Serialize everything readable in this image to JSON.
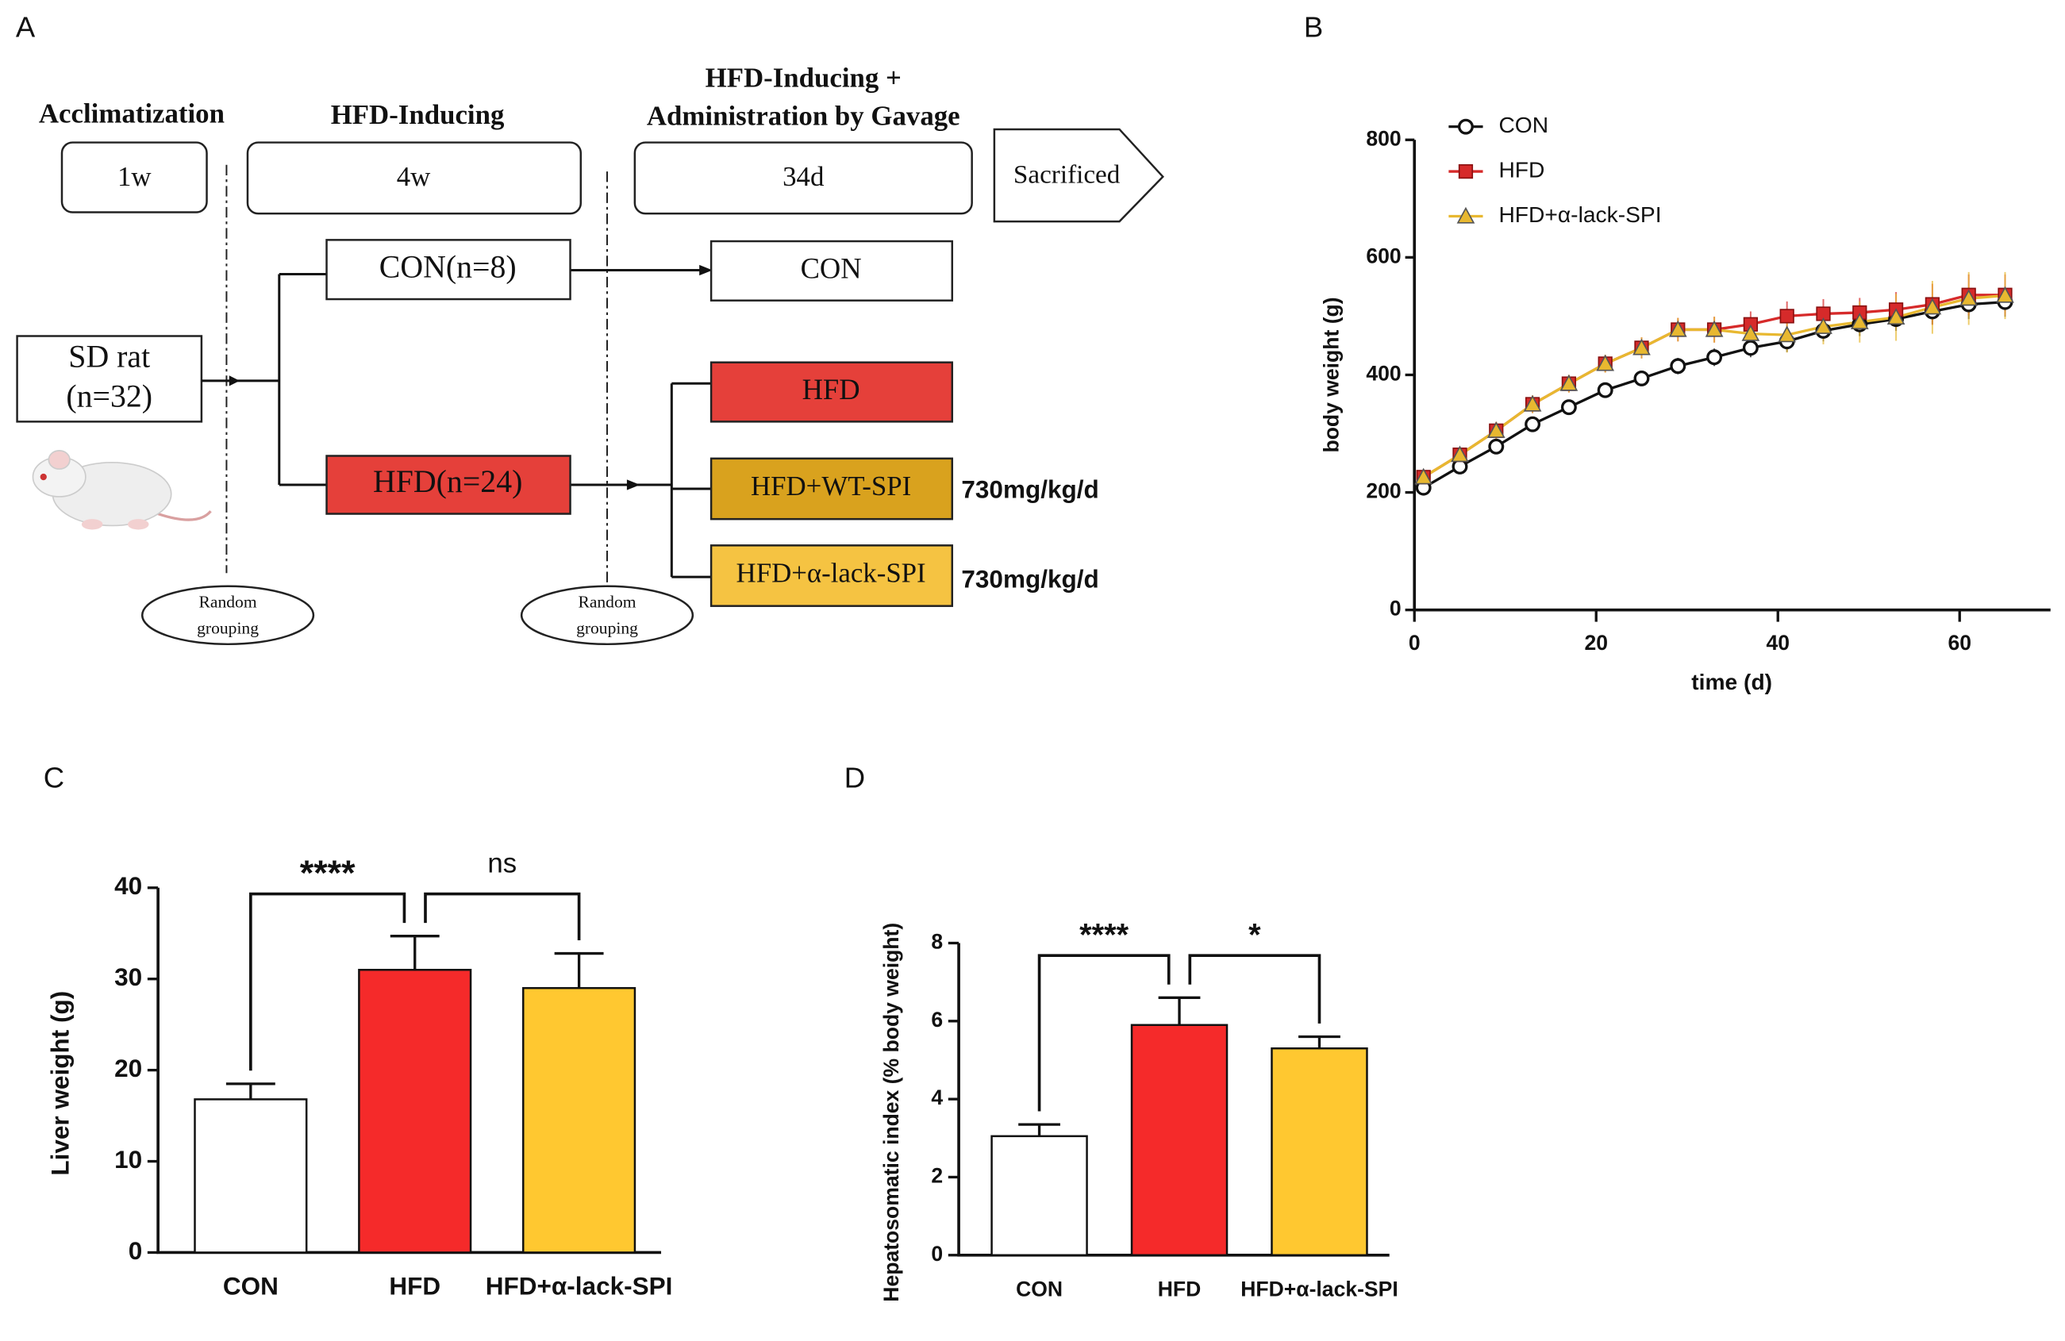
{
  "diagram": {
    "panel_label": "A",
    "phases": [
      {
        "title": [
          "Acclimatization"
        ],
        "duration": "1w"
      },
      {
        "title": [
          "HFD-Inducing"
        ],
        "duration": "4w"
      },
      {
        "title": [
          "HFD-Inducing +",
          "Administration by Gavage"
        ],
        "duration": "34d"
      }
    ],
    "end": "Sacrificed",
    "start": [
      "SD rat",
      "(n=32)"
    ],
    "groups": [
      "CON(n=8)",
      "HFD(n=24)"
    ],
    "treatments": [
      "CON",
      "HFD",
      "HFD+WT-SPI",
      "HFD+α-lack-SPI"
    ],
    "doses": [
      "730mg/kg/d",
      "730mg/kg/d"
    ],
    "random_grouping": [
      [
        "Random",
        "grouping"
      ],
      [
        "Random",
        "grouping"
      ]
    ]
  },
  "chart_data": [
    {
      "type": "line",
      "panel_label": "B",
      "xlabel": "time (d)",
      "ylabel": "body weight  (g)",
      "x": [
        1,
        5,
        9,
        13,
        17,
        21,
        25,
        29,
        33,
        37,
        41,
        45,
        49,
        53,
        57,
        61,
        65
      ],
      "xlim": [
        0,
        70
      ],
      "xticks": [
        0,
        20,
        40,
        60
      ],
      "ylim": [
        0,
        800
      ],
      "yticks": [
        0,
        200,
        400,
        600,
        800
      ],
      "series": [
        {
          "name": "CON",
          "color": "#111111",
          "marker": "circle",
          "values": [
            208,
            244,
            278,
            316,
            345,
            374,
            394,
            415,
            430,
            446,
            457,
            475,
            486,
            495,
            508,
            520,
            524
          ],
          "errors": [
            8,
            12,
            12,
            12,
            12,
            12,
            12,
            14,
            15,
            16,
            18,
            18,
            20,
            20,
            22,
            25,
            25
          ]
        },
        {
          "name": "HFD",
          "color": "#d62a2a",
          "marker": "square",
          "values": [
            226,
            264,
            305,
            350,
            385,
            419,
            446,
            477,
            477,
            486,
            500,
            504,
            506,
            511,
            520,
            536,
            536
          ],
          "errors": [
            8,
            12,
            15,
            15,
            15,
            15,
            18,
            20,
            22,
            22,
            25,
            25,
            25,
            30,
            35,
            35,
            35
          ]
        },
        {
          "name": "HFD+α-lack-SPI",
          "color": "#e8b830",
          "marker": "triangle",
          "values": [
            226,
            264,
            305,
            350,
            385,
            419,
            446,
            477,
            477,
            470,
            468,
            482,
            490,
            498,
            515,
            530,
            535
          ],
          "errors": [
            8,
            12,
            15,
            15,
            15,
            15,
            18,
            20,
            22,
            25,
            30,
            30,
            35,
            40,
            45,
            45,
            40
          ]
        }
      ]
    },
    {
      "type": "bar",
      "panel_label": "C",
      "ylabel": "Liver weight (g)",
      "categories": [
        "CON",
        "HFD",
        "HFD+α-lack-SPI"
      ],
      "values": [
        16.8,
        31,
        29
      ],
      "errors": [
        1.7,
        3.7,
        3.8
      ],
      "colors": [
        "#ffffff",
        "#f52a2a",
        "#ffc830"
      ],
      "ylim": [
        0,
        40
      ],
      "yticks": [
        0,
        10,
        20,
        30,
        40
      ],
      "annotations": [
        {
          "text": "****",
          "from": 0,
          "to": 1
        },
        {
          "text": "ns",
          "from": 1,
          "to": 2
        }
      ]
    },
    {
      "type": "bar",
      "panel_label": "D",
      "ylabel": "Hepatosomatic index (% body weight)",
      "categories": [
        "CON",
        "HFD",
        "HFD+α-lack-SPI"
      ],
      "values": [
        3.05,
        5.9,
        5.3
      ],
      "errors": [
        0.3,
        0.7,
        0.3
      ],
      "colors": [
        "#ffffff",
        "#f52a2a",
        "#ffc830"
      ],
      "ylim": [
        0,
        8
      ],
      "yticks": [
        0,
        2,
        4,
        6,
        8
      ],
      "annotations": [
        {
          "text": "****",
          "from": 0,
          "to": 1
        },
        {
          "text": "*",
          "from": 1,
          "to": 2
        }
      ]
    }
  ]
}
